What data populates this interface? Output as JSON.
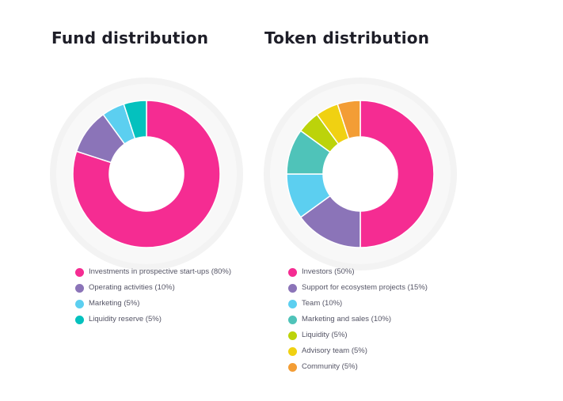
{
  "chart_data": [
    {
      "id": "fund",
      "type": "pie",
      "title": "Fund distribution",
      "categories": [
        "Investments in prospective start-ups (80%)",
        "Operating activities (10%)",
        "Marketing (5%)",
        "Liquidity reserve (5%)"
      ],
      "values": [
        80,
        10,
        5,
        5
      ],
      "colors": [
        "#f52c92",
        "#8b74b8",
        "#5ccff0",
        "#04c1be"
      ],
      "legend_position": "bottom",
      "donut": true
    },
    {
      "id": "token",
      "type": "pie",
      "title": "Token distribution",
      "categories": [
        "Investors (50%)",
        "Support for ecosystem projects (15%)",
        "Team (10%)",
        "Marketing and sales (10%)",
        "Liquidity (5%)",
        "Advisory team (5%)",
        "Community (5%)"
      ],
      "values": [
        50,
        15,
        10,
        10,
        5,
        5,
        5
      ],
      "colors": [
        "#f52c92",
        "#8b74b8",
        "#5ccff0",
        "#4fc3b9",
        "#bcd30a",
        "#f0d112",
        "#f39d35"
      ],
      "legend_position": "bottom",
      "donut": true
    }
  ]
}
